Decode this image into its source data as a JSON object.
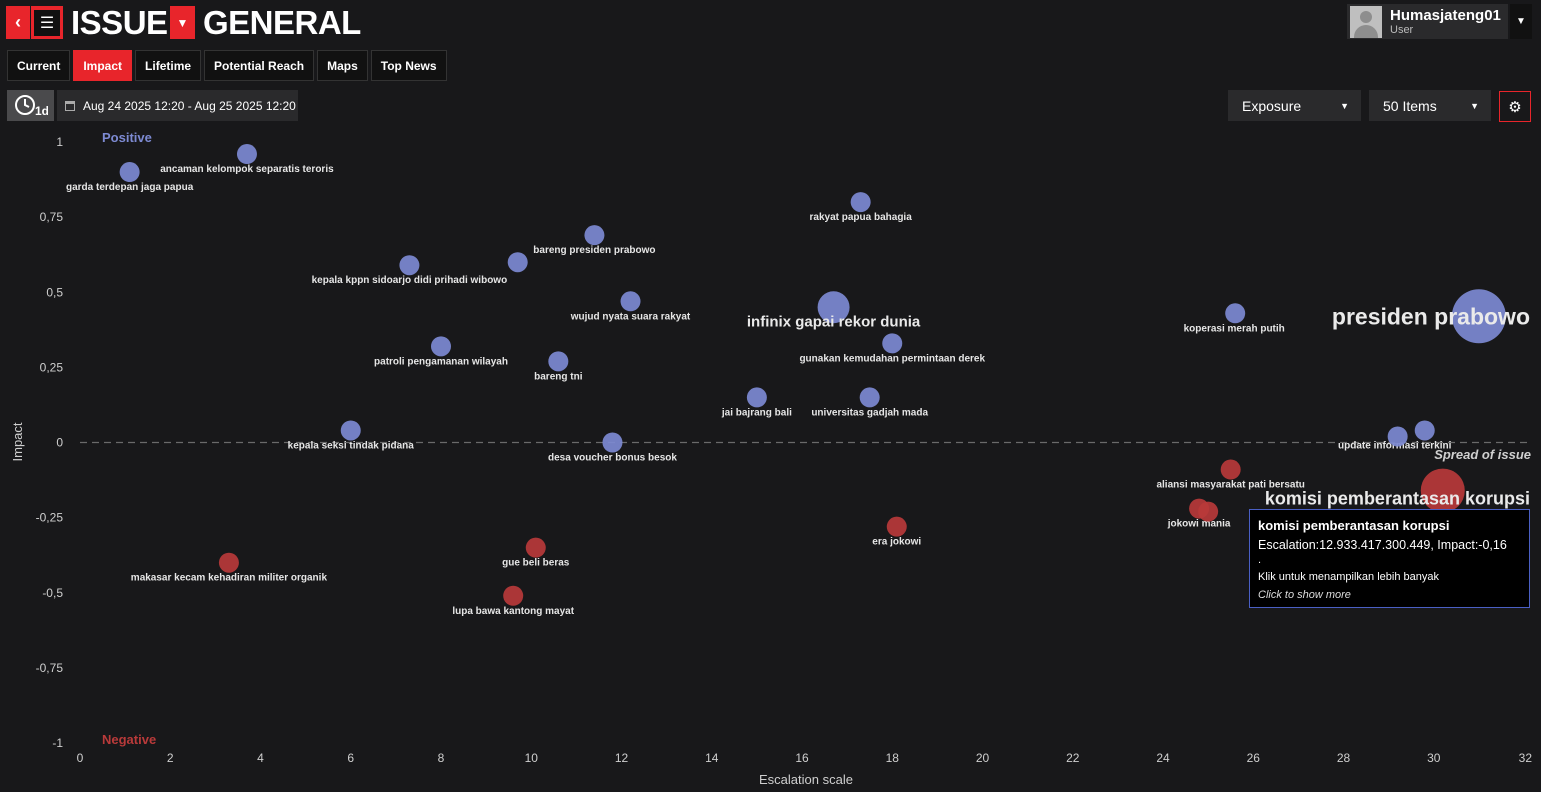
{
  "header": {
    "back_icon": "chevron-left-icon",
    "menu_icon": "hamburger-menu-icon",
    "title_left": "ISSUE",
    "dropdown_icon": "caret-down-icon",
    "title_right": "GENERAL"
  },
  "user": {
    "name": "Humasjateng01",
    "role": "User"
  },
  "tabs": [
    {
      "label": "Current",
      "active": false
    },
    {
      "label": "Impact",
      "active": true
    },
    {
      "label": "Lifetime",
      "active": false
    },
    {
      "label": "Potential Reach",
      "active": false
    },
    {
      "label": "Maps",
      "active": false
    },
    {
      "label": "Top News",
      "active": false
    }
  ],
  "time_filter": {
    "clock_label": "1d",
    "date_range": "Aug 24 2025 12:20  - Aug 25 2025 12:20"
  },
  "controls": {
    "metric_select": "Exposure",
    "items_select": "50 Items"
  },
  "colors": {
    "accent": "#e8252b",
    "positive": "#7d8ad2",
    "negative": "#b93a3a",
    "background": "#18181a"
  },
  "tooltip": {
    "title": "komisi pemberantasan korupsi",
    "line": "Escalation:12.933.417.300.449, Impact:-0,16",
    "dot": ".",
    "hint": "Klik untuk menampilkan lebih banyak",
    "hint_en": "Click to show more"
  },
  "chart_data": {
    "type": "scatter",
    "xlabel": "Escalation scale",
    "ylabel": "Impact",
    "xlim": [
      0,
      32
    ],
    "ylim": [
      -1,
      1
    ],
    "x_ticks": [
      "0",
      "2",
      "4",
      "6",
      "8",
      "10",
      "12",
      "14",
      "16",
      "18",
      "20",
      "22",
      "24",
      "26",
      "28",
      "30",
      "32"
    ],
    "y_ticks": [
      {
        "v": 1,
        "label": "1"
      },
      {
        "v": 0.75,
        "label": "0,75"
      },
      {
        "v": 0.5,
        "label": "0,5"
      },
      {
        "v": 0.25,
        "label": "0,25"
      },
      {
        "v": 0,
        "label": "0"
      },
      {
        "v": -0.25,
        "label": "-0,25"
      },
      {
        "v": -0.5,
        "label": "-0,5"
      },
      {
        "v": -0.75,
        "label": "-0,75"
      },
      {
        "v": -1,
        "label": "-1"
      }
    ],
    "positive_label": "Positive",
    "negative_label": "Negative",
    "zero_line_label": "Spread of issue",
    "points": [
      {
        "label": "garda terdepan jaga papua",
        "x": 1.1,
        "y": 0.9,
        "big": false
      },
      {
        "label": "ancaman kelompok separatis teroris",
        "x": 3.7,
        "y": 0.96,
        "big": false
      },
      {
        "label": "rakyat papua bahagia",
        "x": 17.3,
        "y": 0.8,
        "big": false
      },
      {
        "label": "bareng presiden prabowo",
        "x": 11.4,
        "y": 0.69,
        "big": false
      },
      {
        "label": "kepala kppn sidoarjo didi prihadi wibowo",
        "x": 7.3,
        "y": 0.59,
        "big": false
      },
      {
        "label": "",
        "x": 9.7,
        "y": 0.6,
        "big": false
      },
      {
        "label": "wujud nyata suara rakyat",
        "x": 12.2,
        "y": 0.47,
        "big": false
      },
      {
        "label": "infinix gapai rekor dunia",
        "x": 16.7,
        "y": 0.45,
        "big": true
      },
      {
        "label": "koperasi merah putih",
        "x": 25.6,
        "y": 0.43,
        "big": false
      },
      {
        "label": "presiden prabowo",
        "x": 31.0,
        "y": 0.42,
        "big": true
      },
      {
        "label": "gunakan kemudahan permintaan derek",
        "x": 18.0,
        "y": 0.33,
        "big": false
      },
      {
        "label": "patroli pengamanan wilayah",
        "x": 8.0,
        "y": 0.32,
        "big": false
      },
      {
        "label": "bareng tni",
        "x": 10.6,
        "y": 0.27,
        "big": false
      },
      {
        "label": "jai bajrang bali",
        "x": 15.0,
        "y": 0.15,
        "big": false
      },
      {
        "label": "universitas gadjah mada",
        "x": 17.5,
        "y": 0.15,
        "big": false
      },
      {
        "label": "kepala seksi tindak pidana",
        "x": 6.0,
        "y": 0.04,
        "big": false
      },
      {
        "label": "desa voucher bonus besok",
        "x": 11.8,
        "y": 0.0,
        "big": false
      },
      {
        "label": "update informasi terkini",
        "x": 29.8,
        "y": 0.04,
        "big": false
      },
      {
        "label": "",
        "x": 29.2,
        "y": 0.02,
        "big": false
      },
      {
        "label": "aliansi masyarakat pati bersatu",
        "x": 25.5,
        "y": -0.09,
        "big": false
      },
      {
        "label": "komisi pemberantasan korupsi",
        "x": 30.2,
        "y": -0.16,
        "big": true
      },
      {
        "label": "jokowi mania",
        "x": 24.8,
        "y": -0.22,
        "big": false
      },
      {
        "label": "",
        "x": 25.0,
        "y": -0.23,
        "big": false
      },
      {
        "label": "era jokowi",
        "x": 18.1,
        "y": -0.28,
        "big": false
      },
      {
        "label": "gue beli beras",
        "x": 10.1,
        "y": -0.35,
        "big": false
      },
      {
        "label": "makasar kecam kehadiran militer organik",
        "x": 3.3,
        "y": -0.4,
        "big": false
      },
      {
        "label": "lupa bawa kantong mayat",
        "x": 9.6,
        "y": -0.51,
        "big": false
      }
    ]
  }
}
